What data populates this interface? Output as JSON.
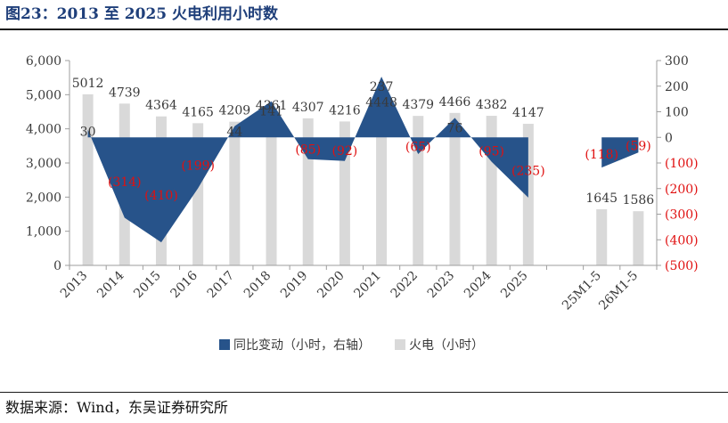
{
  "title": "图23：2013 至 2025 火电利用小时数",
  "source": "数据来源：Wind，东吴证券研究所",
  "chart_data": {
    "type": "bar",
    "categories": [
      "2013",
      "2014",
      "2015",
      "2016",
      "2017",
      "2018",
      "2019",
      "2020",
      "2021",
      "2022",
      "2023",
      "2024",
      "2025",
      "",
      "25M1-5",
      "26M1-5"
    ],
    "series": [
      {
        "name": "同比变动（小时，右轴）",
        "type": "area",
        "axis": "right",
        "values": [
          30,
          -314,
          -410,
          -199,
          44,
          141,
          -85,
          -92,
          237,
          -65,
          76,
          -95,
          -235,
          null,
          -118,
          -59
        ],
        "labels": [
          "30",
          "(314)",
          "(410)",
          "(199)",
          "44",
          "141",
          "(85)",
          "(92)",
          "237",
          "(65)",
          "76",
          "(95)",
          "(235)",
          "",
          "(118)",
          "(59)"
        ]
      },
      {
        "name": "火电（小时）",
        "type": "bar",
        "axis": "left",
        "values": [
          5012,
          4739,
          4364,
          4165,
          4209,
          4361,
          4307,
          4216,
          4448,
          4379,
          4466,
          4382,
          4147,
          null,
          1645,
          1586
        ],
        "labels": [
          "5012",
          "4739",
          "4364",
          "4165",
          "4209",
          "4361",
          "4307",
          "4216",
          "4448",
          "4379",
          "4466",
          "4382",
          "4147",
          "",
          "1645",
          "1586"
        ]
      }
    ],
    "left_axis": {
      "min": 0,
      "max": 6000,
      "ticks": [
        0,
        1000,
        2000,
        3000,
        4000,
        5000,
        6000
      ],
      "tick_labels": [
        "0",
        "1,000",
        "2,000",
        "3,000",
        "4,000",
        "5,000",
        "6,000"
      ]
    },
    "right_axis": {
      "min": -500,
      "max": 300,
      "ticks": [
        -500,
        -400,
        -300,
        -200,
        -100,
        0,
        100,
        200,
        300
      ],
      "tick_labels": [
        "(500)",
        "(400)",
        "(300)",
        "(200)",
        "(100)",
        "0",
        "100",
        "200",
        "300"
      ]
    },
    "legend": {
      "position": "bottom",
      "entries": [
        "同比变动（小时，右轴）",
        "火电（小时）"
      ]
    },
    "colors": {
      "area": "#27538a",
      "bar": "#d9d9d9",
      "negative_label": "#e01010",
      "axis": "#9e9e9e",
      "text": "#3a3a3a"
    }
  }
}
